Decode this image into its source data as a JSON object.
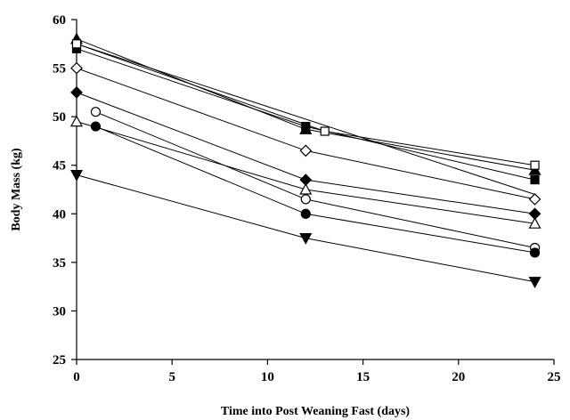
{
  "chart_data": {
    "type": "line",
    "xlabel": "Time into Post Weaning Fast (days)",
    "ylabel": "Body Mass (kg)",
    "xlim": [
      0,
      25
    ],
    "ylim": [
      25,
      60
    ],
    "xticks": [
      0,
      5,
      10,
      15,
      20,
      25
    ],
    "yticks": [
      25,
      30,
      35,
      40,
      45,
      50,
      55,
      60
    ],
    "grid": false,
    "legend": "none",
    "series": [
      {
        "marker": "triangle-up",
        "filled": true,
        "x": [
          0,
          12,
          24
        ],
        "y": [
          58.0,
          48.7,
          44.5
        ]
      },
      {
        "marker": "square",
        "filled": true,
        "x": [
          0,
          12,
          24
        ],
        "y": [
          57.0,
          49.0,
          43.5
        ]
      },
      {
        "marker": "square",
        "filled": false,
        "x": [
          0,
          13,
          24
        ],
        "y": [
          57.5,
          48.5,
          45.0
        ]
      },
      {
        "marker": "diamond",
        "filled": false,
        "x": [
          0,
          12,
          24
        ],
        "y": [
          55.0,
          46.5,
          41.5
        ]
      },
      {
        "marker": "diamond",
        "filled": true,
        "x": [
          0,
          12,
          24
        ],
        "y": [
          52.5,
          43.5,
          40.0
        ]
      },
      {
        "marker": "triangle-up",
        "filled": false,
        "x": [
          0,
          12,
          24
        ],
        "y": [
          49.5,
          42.5,
          39.0
        ]
      },
      {
        "marker": "circle",
        "filled": false,
        "x": [
          1,
          12,
          24
        ],
        "y": [
          50.5,
          41.5,
          36.5
        ]
      },
      {
        "marker": "circle",
        "filled": true,
        "x": [
          1,
          12,
          24
        ],
        "y": [
          49.0,
          40.0,
          36.0
        ]
      },
      {
        "marker": "triangle-down",
        "filled": true,
        "x": [
          0,
          12,
          24
        ],
        "y": [
          44.0,
          37.5,
          33.0
        ]
      },
      {
        "marker": "line-only",
        "filled": false,
        "x": [
          0,
          24
        ],
        "y": [
          57.5,
          42.0
        ]
      }
    ]
  }
}
